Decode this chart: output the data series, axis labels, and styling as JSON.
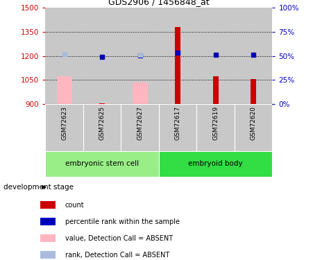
{
  "title": "GDS2906 / 1456848_at",
  "samples": [
    "GSM72623",
    "GSM72625",
    "GSM72627",
    "GSM72617",
    "GSM72619",
    "GSM72620"
  ],
  "ylim_left": [
    900,
    1500
  ],
  "ylim_right": [
    0,
    100
  ],
  "yticks_left": [
    900,
    1050,
    1200,
    1350,
    1500
  ],
  "yticks_right": [
    0,
    25,
    50,
    75,
    100
  ],
  "ytick_labels_right": [
    "0%",
    "25%",
    "50%",
    "75%",
    "100%"
  ],
  "bar_values": {
    "GSM72623": {
      "pink_bar": 1075,
      "red_bar": null,
      "blue_square": null,
      "light_blue_square": 1210
    },
    "GSM72625": {
      "pink_bar": 905,
      "red_bar": 905,
      "blue_square": 1195,
      "light_blue_square": null
    },
    "GSM72627": {
      "pink_bar": 1035,
      "red_bar": null,
      "blue_square": 1202,
      "light_blue_square": 1205
    },
    "GSM72617": {
      "pink_bar": null,
      "red_bar": 1380,
      "blue_square": 1220,
      "light_blue_square": null
    },
    "GSM72619": {
      "pink_bar": null,
      "red_bar": 1073,
      "blue_square": 1207,
      "light_blue_square": null
    },
    "GSM72620": {
      "pink_bar": null,
      "red_bar": 1057,
      "blue_square": 1207,
      "light_blue_square": null
    }
  },
  "colors": {
    "red_bar": "#CC0000",
    "pink_bar": "#FFB6C1",
    "blue_square": "#0000BB",
    "light_blue_square": "#AABBDD",
    "group1_bg": "#99EE88",
    "group2_bg": "#33DD44",
    "sample_bg": "#C8C8C8",
    "left_axis_color": "#CC0000",
    "right_axis_color": "#0000BB"
  },
  "baseline": 900,
  "groups": [
    {
      "label": "embryonic stem cell",
      "start": 0,
      "end": 3,
      "color": "#99EE88"
    },
    {
      "label": "embryoid body",
      "start": 3,
      "end": 6,
      "color": "#33DD44"
    }
  ],
  "legend_items": [
    {
      "label": "count",
      "color": "#CC0000"
    },
    {
      "label": "percentile rank within the sample",
      "color": "#0000BB"
    },
    {
      "label": "value, Detection Call = ABSENT",
      "color": "#FFB6C1"
    },
    {
      "label": "rank, Detection Call = ABSENT",
      "color": "#AABBDD"
    }
  ]
}
